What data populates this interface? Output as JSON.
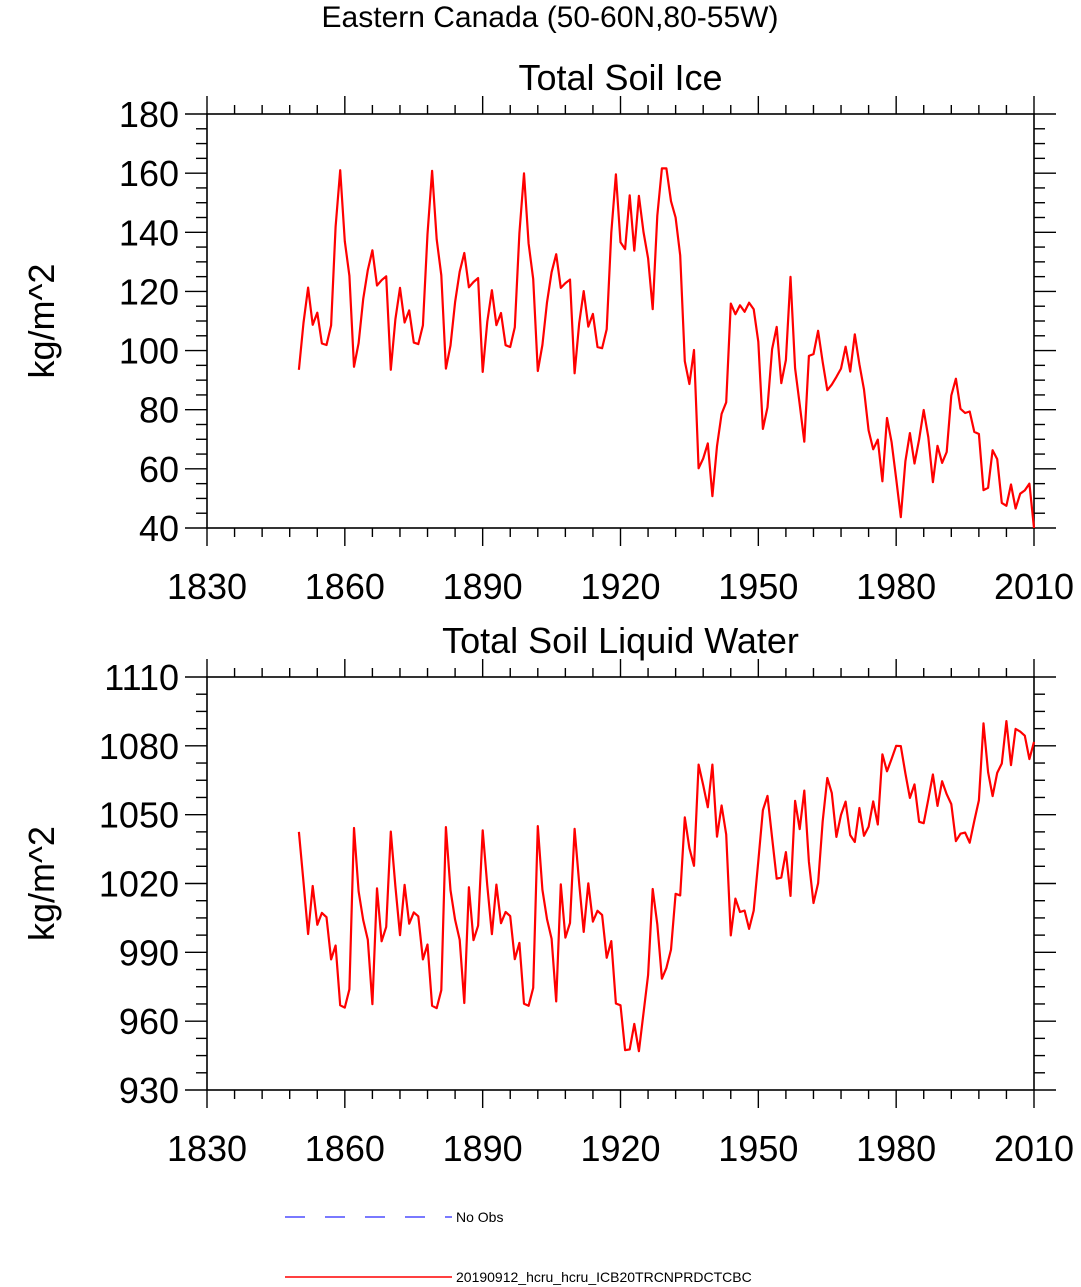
{
  "figure": {
    "suptitle": "Eastern Canada (50-60N,80-55W)"
  },
  "chart_data": [
    {
      "type": "line",
      "title": "Total Soil Ice",
      "xlabel": "",
      "ylabel": "kg/m^2",
      "xlim": [
        1830,
        2010
      ],
      "ylim": [
        40,
        180
      ],
      "x_ticks": [
        1830,
        1860,
        1890,
        1920,
        1950,
        1980,
        2010
      ],
      "x_tick_labels": [
        "1830",
        "1860",
        "1890",
        "1920",
        "1950",
        "1980",
        "2010"
      ],
      "y_ticks": [
        40,
        60,
        80,
        100,
        120,
        140,
        160,
        180
      ],
      "y_tick_labels": [
        "40",
        "60",
        "80",
        "100",
        "120",
        "140",
        "160",
        "180"
      ],
      "series": [
        {
          "name": "20190912_hcru_hcru_ICB20TRCNPRDCTCBC",
          "color": "#ff0000",
          "x_start": 1850,
          "values": [
            93.5,
            109.4,
            121.3,
            108.7,
            112.8,
            102.4,
            101.9,
            108.5,
            141.9,
            161.0,
            137.0,
            125.3,
            94.5,
            102.5,
            117.4,
            127.2,
            133.9,
            122.0,
            123.8,
            125.1,
            93.5,
            110.6,
            121.2,
            109.5,
            113.6,
            102.7,
            102.2,
            108.5,
            139.4,
            160.8,
            137.6,
            125.5,
            93.9,
            101.7,
            116.4,
            126.7,
            133.0,
            121.4,
            123.2,
            124.5,
            92.8,
            109.8,
            120.4,
            108.6,
            112.7,
            101.8,
            101.2,
            107.9,
            139.7,
            159.9,
            136.2,
            124.2,
            93.1,
            101.9,
            116.3,
            126.5,
            132.6,
            121.2,
            122.8,
            124.0,
            92.3,
            109.3,
            120.1,
            108.1,
            112.4,
            101.2,
            100.8,
            107.2,
            139.9,
            159.6,
            136.6,
            134.3,
            152.5,
            133.8,
            152.3,
            140.1,
            131.2,
            114.0,
            145.6,
            161.6,
            161.6,
            150.5,
            145.0,
            132.2,
            96.4,
            88.7,
            100.2,
            60.2,
            63.5,
            68.6,
            50.8,
            67.7,
            78.6,
            82.5,
            115.9,
            112.3,
            115.3,
            113.1,
            116.2,
            114.0,
            103.0,
            73.5,
            80.8,
            100.5,
            108.0,
            89.0,
            96.8,
            124.9,
            94.0,
            81.8,
            69.2,
            98.2,
            98.8,
            106.7,
            96.1,
            86.6,
            88.5,
            91.1,
            93.9,
            101.3,
            92.9,
            105.5,
            95.4,
            86.8,
            73.0,
            66.6,
            69.9,
            55.8,
            77.2,
            69.0,
            56.6,
            43.7,
            62.6,
            72.1,
            61.8,
            69.9,
            79.9,
            70.7,
            55.5,
            67.8,
            62.0,
            65.7,
            84.8,
            90.5,
            80.3,
            78.9,
            79.4,
            72.5,
            71.8,
            52.8,
            53.6,
            66.3,
            63.3,
            48.5,
            47.5,
            54.7,
            46.6,
            51.6,
            52.7,
            55.0,
            40.0
          ]
        }
      ]
    },
    {
      "type": "line",
      "title": "Total Soil Liquid Water",
      "xlabel": "",
      "ylabel": "kg/m^2",
      "xlim": [
        1830,
        2010
      ],
      "ylim": [
        930,
        1110
      ],
      "x_ticks": [
        1830,
        1860,
        1890,
        1920,
        1950,
        1980,
        2010
      ],
      "x_tick_labels": [
        "1830",
        "1860",
        "1890",
        "1920",
        "1950",
        "1980",
        "2010"
      ],
      "y_ticks": [
        930,
        960,
        990,
        1020,
        1050,
        1080,
        1110
      ],
      "y_tick_labels": [
        "930",
        "960",
        "990",
        "1020",
        "1050",
        "1080",
        "1110"
      ],
      "series": [
        {
          "name": "20190912_hcru_hcru_ICB20TRCNPRDCTCBC",
          "color": "#ff0000",
          "x_start": 1850,
          "values": [
            1042.5,
            1020.6,
            998.0,
            1018.9,
            1002.0,
            1007.2,
            1005.3,
            986.9,
            993.0,
            966.9,
            965.9,
            973.9,
            1044.2,
            1016.6,
            1004.1,
            995.5,
            967.4,
            1017.9,
            994.8,
            1001.1,
            1042.6,
            1018.7,
            997.5,
            1019.4,
            1002.5,
            1007.4,
            1005.7,
            986.9,
            993.4,
            966.7,
            965.7,
            973.5,
            1044.6,
            1017.1,
            1004.2,
            995.4,
            967.9,
            1018.4,
            995.3,
            1001.6,
            1043.2,
            1019.0,
            997.9,
            1019.5,
            1002.7,
            1007.6,
            1005.8,
            987.0,
            994.1,
            967.6,
            966.7,
            974.5,
            1045.0,
            1017.3,
            1004.5,
            995.9,
            968.6,
            1019.6,
            996.4,
            1002.8,
            1043.8,
            1020.0,
            998.9,
            1020.1,
            1003.4,
            1008.1,
            1006.3,
            987.6,
            994.9,
            967.7,
            966.9,
            947.4,
            947.7,
            958.8,
            946.9,
            963.5,
            980.1,
            1017.6,
            1002.2,
            978.5,
            983.2,
            991.2,
            1015.5,
            1014.8,
            1048.8,
            1035.4,
            1027.7,
            1071.8,
            1062.9,
            1053.2,
            1071.8,
            1040.4,
            1054.0,
            1041.4,
            997.4,
            1013.4,
            1007.6,
            1008.2,
            1000.2,
            1008.2,
            1029.7,
            1052.0,
            1058.2,
            1039.9,
            1022.1,
            1022.6,
            1033.7,
            1014.6,
            1056.0,
            1043.7,
            1060.5,
            1029.5,
            1011.5,
            1020.1,
            1047.2,
            1066.0,
            1059.4,
            1040.3,
            1049.9,
            1055.7,
            1041.1,
            1038.1,
            1052.9,
            1040.8,
            1044.7,
            1055.8,
            1045.7,
            1076.3,
            1068.9,
            1074.3,
            1080.0,
            1079.9,
            1068.0,
            1057.3,
            1063.2,
            1046.9,
            1046.3,
            1056.7,
            1067.5,
            1053.8,
            1064.6,
            1058.9,
            1054.6,
            1038.5,
            1041.7,
            1042.2,
            1037.8,
            1047.3,
            1056.3,
            1089.8,
            1068.5,
            1058.1,
            1068.2,
            1072.3,
            1090.8,
            1071.6,
            1087.4,
            1086.2,
            1084.4,
            1074.2,
            1081.7
          ]
        }
      ]
    }
  ],
  "legend": {
    "entries": [
      {
        "label": "No Obs",
        "color": "#4d4dff",
        "style": "dashed"
      },
      {
        "label": "20190912_hcru_hcru_ICB20TRCNPRDCTCBC",
        "color": "#ff0000",
        "style": "solid"
      }
    ]
  }
}
